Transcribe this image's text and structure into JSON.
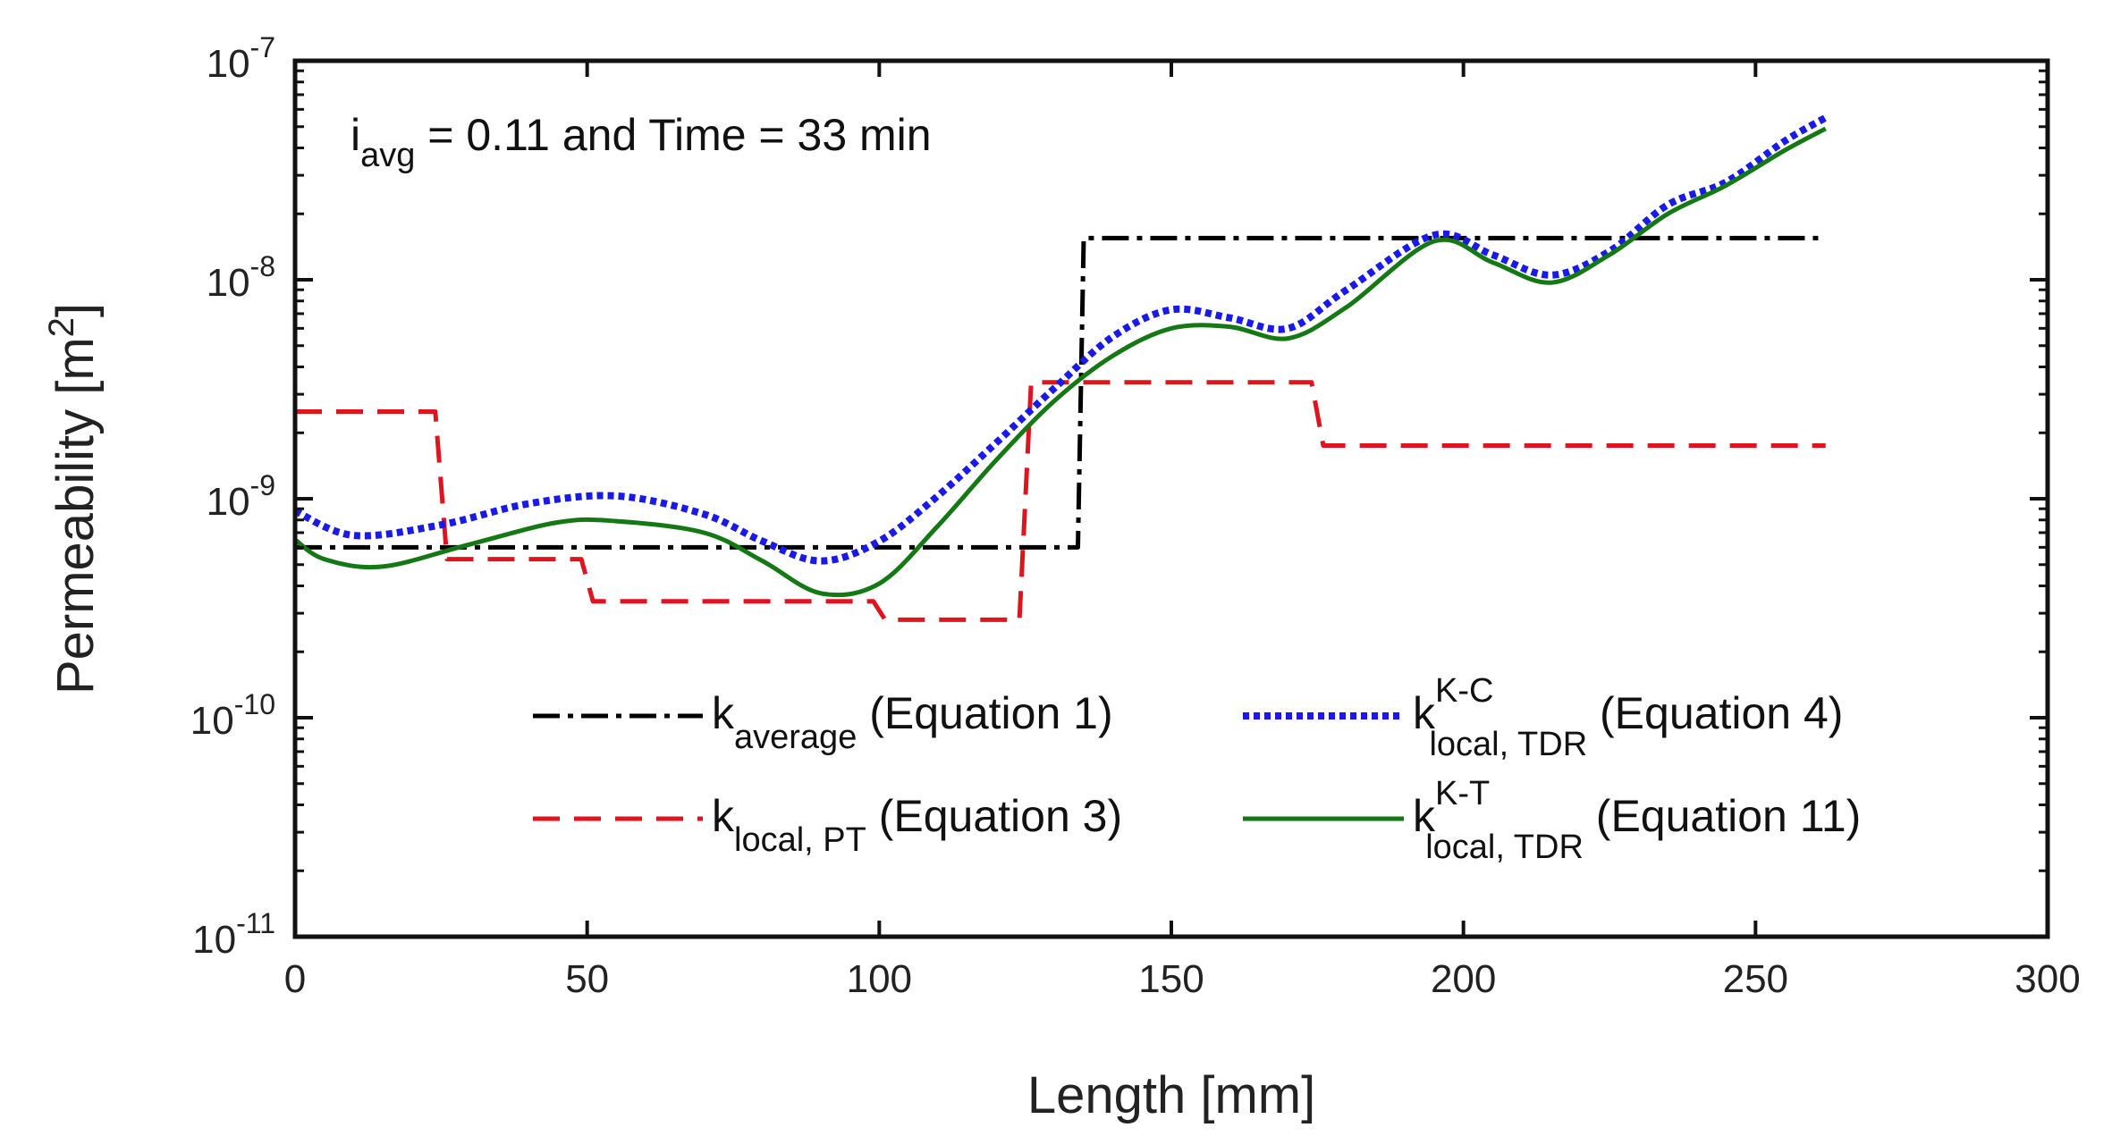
{
  "chart_data": {
    "type": "line",
    "title": "",
    "annotation": {
      "prefix": "i",
      "prefix_sub": "avg",
      "text": " = 0.11 and Time = 33 min"
    },
    "xlabel": "Length [mm]",
    "ylabel_text": "Permeability [m",
    "ylabel_sup": "2",
    "ylabel_close": "]",
    "xlim": [
      0,
      300
    ],
    "ylim": [
      1e-11,
      1e-07
    ],
    "yscale": "log",
    "x_ticks": [
      0,
      50,
      100,
      150,
      200,
      250,
      300
    ],
    "x_tick_labels": [
      "0",
      "50",
      "100",
      "150",
      "200",
      "250",
      "300"
    ],
    "y_ticks": [
      {
        "exp": -11,
        "base": "10",
        "sup": "-11"
      },
      {
        "exp": -10,
        "base": "10",
        "sup": "-10"
      },
      {
        "exp": -9,
        "base": "10",
        "sup": "-9"
      },
      {
        "exp": -8,
        "base": "10",
        "sup": "-8"
      },
      {
        "exp": -7,
        "base": "10",
        "sup": "-7"
      }
    ],
    "grid": false,
    "legend_position": "bottom-center",
    "series": [
      {
        "name": "k_average (Equation 1)",
        "symbol": "k",
        "sub": "average",
        "sup": "",
        "eq": " (Equation 1)",
        "color": "#000000",
        "style": "dash-dot",
        "x": [
          0,
          134,
          135,
          262
        ],
        "y": [
          6e-10,
          6e-10,
          1.55e-08,
          1.55e-08
        ]
      },
      {
        "name": "k_local, PT (Equation 3)",
        "symbol": "k",
        "sub": "local, PT",
        "sup": "",
        "eq": " (Equation 3)",
        "color": "#e0141e",
        "style": "dashed",
        "x": [
          0,
          24,
          26,
          49,
          51,
          99,
          101,
          124,
          126,
          174,
          176,
          262
        ],
        "y": [
          2.5e-09,
          2.5e-09,
          5.3e-10,
          5.3e-10,
          3.4e-10,
          3.4e-10,
          2.8e-10,
          2.8e-10,
          3.4e-09,
          3.4e-09,
          1.75e-09,
          1.75e-09
        ]
      },
      {
        "name": "k^K-C_local, TDR (Equation 4)",
        "symbol": "k",
        "sub": "local, TDR",
        "sup": "K-C",
        "eq": " (Equation 4)",
        "color": "#1a1ae6",
        "style": "dotted",
        "x": [
          0,
          10,
          25,
          40,
          55,
          70,
          80,
          90,
          100,
          110,
          120,
          130,
          140,
          150,
          160,
          170,
          180,
          195,
          205,
          215,
          225,
          235,
          245,
          255,
          262
        ],
        "y": [
          8.8e-10,
          6.8e-10,
          7.6e-10,
          9.5e-10,
          1.03e-09,
          8.5e-10,
          6.4e-10,
          5.2e-10,
          6.4e-10,
          1.03e-09,
          1.8e-09,
          3.2e-09,
          5.5e-09,
          7.3e-09,
          6.7e-09,
          6e-09,
          9e-09,
          1.6e-08,
          1.3e-08,
          1.05e-08,
          1.35e-08,
          2.2e-08,
          2.8e-08,
          4.3e-08,
          5.5e-08
        ]
      },
      {
        "name": "k^K-T_local, TDR (Equation 11)",
        "symbol": "k",
        "sub": "local, TDR",
        "sup": "K-T",
        "eq": " (Equation 11)",
        "color": "#147814",
        "style": "solid",
        "x": [
          0,
          5,
          15,
          30,
          45,
          55,
          70,
          80,
          90,
          100,
          110,
          120,
          130,
          140,
          150,
          160,
          170,
          180,
          195,
          205,
          215,
          225,
          235,
          245,
          255,
          262
        ],
        "y": [
          6.5e-10,
          5.3e-10,
          4.9e-10,
          6.2e-10,
          7.8e-10,
          7.9e-10,
          7e-10,
          5.2e-10,
          3.7e-10,
          4.1e-10,
          7.5e-10,
          1.5e-09,
          2.8e-09,
          4.5e-09,
          6e-09,
          6.1e-09,
          5.4e-09,
          7.5e-09,
          1.5e-08,
          1.2e-08,
          9.7e-09,
          1.3e-08,
          2e-08,
          2.7e-08,
          3.9e-08,
          4.9e-08
        ]
      }
    ]
  }
}
